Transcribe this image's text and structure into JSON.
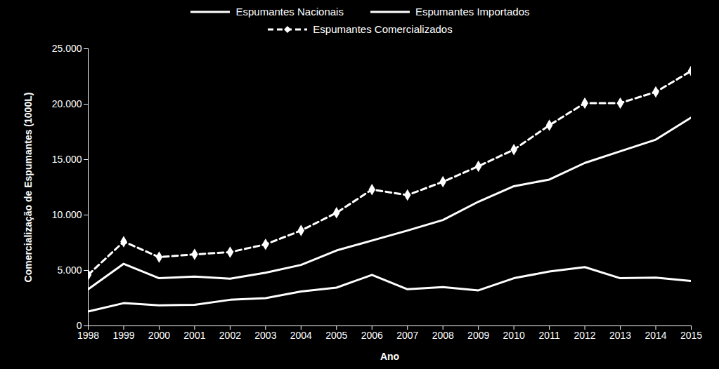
{
  "chart_data": {
    "type": "line",
    "x_label": "Ano",
    "y_label": "Comercialização de Espumantes (1000L)",
    "x": [
      1998,
      1999,
      2000,
      2001,
      2002,
      2003,
      2004,
      2005,
      2006,
      2007,
      2008,
      2009,
      2010,
      2011,
      2012,
      2013,
      2014,
      2015
    ],
    "series": [
      {
        "name": "Espumantes Nacionais",
        "color": "#ffffff",
        "line_style": "solid",
        "marker": "none",
        "values": [
          3300,
          5600,
          4300,
          4450,
          4250,
          4800,
          5500,
          6800,
          7700,
          8600,
          9550,
          11200,
          12600,
          13200,
          14700,
          15750,
          16800,
          18800
        ]
      },
      {
        "name": "Espumantes Importados",
        "color": "#ffffff",
        "line_style": "solid",
        "marker": "none",
        "values": [
          1300,
          2050,
          1850,
          1900,
          2350,
          2500,
          3100,
          3450,
          4600,
          3300,
          3500,
          3200,
          4300,
          4900,
          5300,
          4300,
          4350,
          4050
        ]
      },
      {
        "name": "Espumantes Comercializados",
        "color": "#ffffff",
        "line_style": "dashed",
        "marker": "diamond",
        "values": [
          4600,
          7600,
          6200,
          6450,
          6650,
          7350,
          8600,
          10200,
          12300,
          11800,
          13000,
          14400,
          15900,
          18100,
          20100,
          20100,
          21100,
          23000
        ]
      }
    ],
    "xlim": [
      1998,
      2015
    ],
    "xticks": [
      1998,
      1999,
      2000,
      2001,
      2002,
      2003,
      2004,
      2005,
      2006,
      2007,
      2008,
      2009,
      2010,
      2011,
      2012,
      2013,
      2014,
      2015
    ],
    "ylim": [
      0,
      25000
    ],
    "yticks": [
      0,
      {
        "value": 5000,
        "label": "5.000"
      },
      {
        "value": 10000,
        "label": "10.000"
      },
      {
        "value": 15000,
        "label": "15.000"
      },
      {
        "value": 20000,
        "label": "20.000"
      },
      {
        "value": 25000,
        "label": "25.000"
      }
    ],
    "grid": false,
    "legend": "top"
  }
}
